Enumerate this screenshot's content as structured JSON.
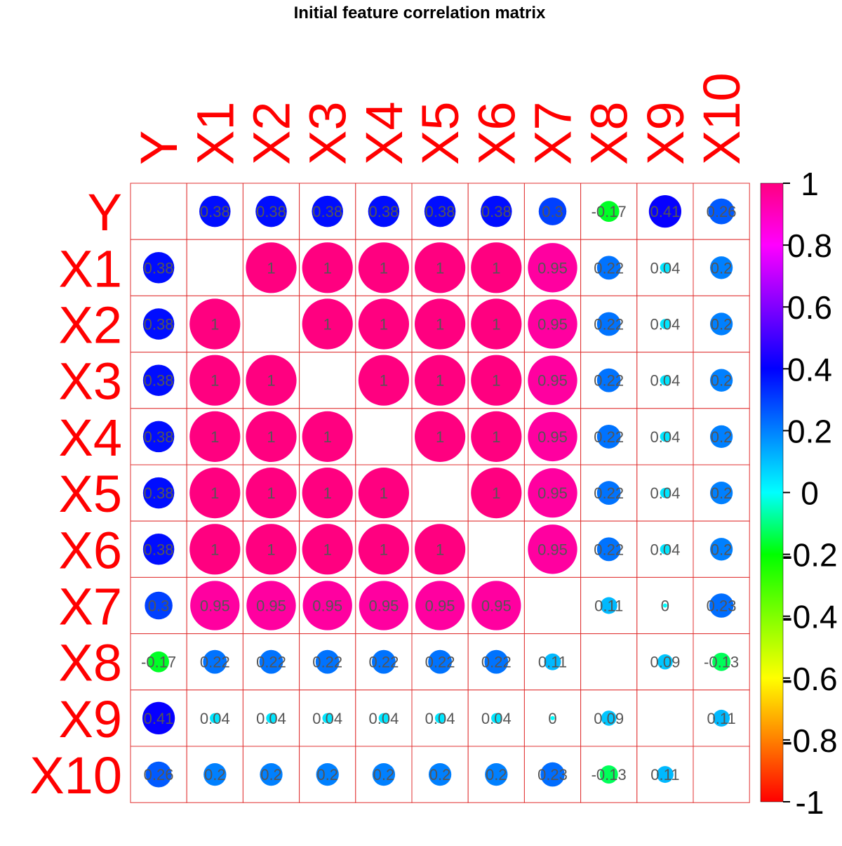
{
  "chart_data": {
    "type": "heatmap",
    "title": "Initial feature correlation matrix",
    "variables": [
      "Y",
      "X1",
      "X2",
      "X3",
      "X4",
      "X5",
      "X6",
      "X7",
      "X8",
      "X9",
      "X10"
    ],
    "matrix": [
      [
        null,
        0.38,
        0.38,
        0.38,
        0.38,
        0.38,
        0.38,
        0.3,
        -0.17,
        0.41,
        0.26
      ],
      [
        0.38,
        null,
        1,
        1,
        1,
        1,
        1,
        0.95,
        0.22,
        0.04,
        0.2
      ],
      [
        0.38,
        1,
        null,
        1,
        1,
        1,
        1,
        0.95,
        0.22,
        0.04,
        0.2
      ],
      [
        0.38,
        1,
        1,
        null,
        1,
        1,
        1,
        0.95,
        0.22,
        0.04,
        0.2
      ],
      [
        0.38,
        1,
        1,
        1,
        null,
        1,
        1,
        0.95,
        0.22,
        0.04,
        0.2
      ],
      [
        0.38,
        1,
        1,
        1,
        1,
        null,
        1,
        0.95,
        0.22,
        0.04,
        0.2
      ],
      [
        0.38,
        1,
        1,
        1,
        1,
        1,
        null,
        0.95,
        0.22,
        0.04,
        0.2
      ],
      [
        0.3,
        0.95,
        0.95,
        0.95,
        0.95,
        0.95,
        0.95,
        null,
        0.11,
        0,
        0.23
      ],
      [
        -0.17,
        0.22,
        0.22,
        0.22,
        0.22,
        0.22,
        0.22,
        0.11,
        null,
        0.09,
        -0.13
      ],
      [
        0.41,
        0.04,
        0.04,
        0.04,
        0.04,
        0.04,
        0.04,
        0,
        0.09,
        null,
        0.11
      ],
      [
        0.26,
        0.2,
        0.2,
        0.2,
        0.2,
        0.2,
        0.2,
        0.23,
        -0.13,
        0.11,
        null
      ]
    ],
    "colorbar": {
      "ticks": [
        1,
        0.8,
        0.6,
        0.4,
        0.2,
        0,
        -0.2,
        -0.4,
        -0.6,
        -0.8,
        -1
      ],
      "tick_labels": [
        "1",
        "0.8",
        "0.6",
        "0.4",
        "0.2",
        "0",
        "-0.2",
        "-0.4",
        "-0.6",
        "-0.8",
        "-1"
      ],
      "range": [
        -1,
        1
      ],
      "colors_low_to_high": [
        "#ff0000",
        "#ff8000",
        "#ffff00",
        "#80ff00",
        "#00ff00",
        "#00ffff",
        "#0080ff",
        "#0000ff",
        "#8000ff",
        "#ff00ff",
        "#ff0080"
      ]
    },
    "label_color": "#ff0000",
    "grid_color": "#e03030",
    "value_text_color": "#555555"
  }
}
